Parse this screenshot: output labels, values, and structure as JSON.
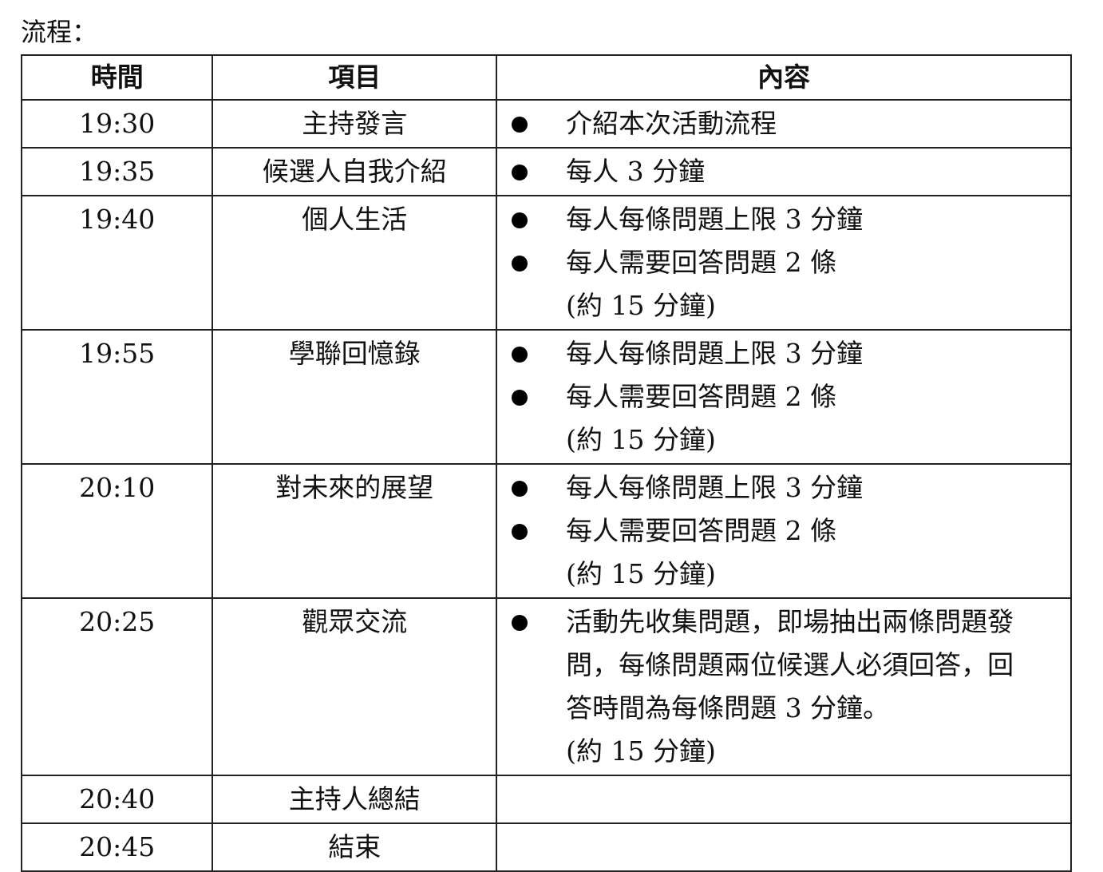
{
  "title": "流程：",
  "headers": [
    "時間",
    "項目",
    "內容"
  ],
  "rows": [
    {
      "time": "19:30",
      "item": "主持發言",
      "bullets": [
        "介紹本次活動流程"
      ],
      "note": ""
    },
    {
      "time": "19:35",
      "item": "候選人自我介紹",
      "bullets": [
        "每人 3 分鐘"
      ],
      "note": ""
    },
    {
      "time": "19:40",
      "item": "個人生活",
      "bullets": [
        "每人每條問題上限 3 分鐘",
        "每人需要回答問題 2 條"
      ],
      "note": "(約 15 分鐘)"
    },
    {
      "time": "19:55",
      "item": "學聯回憶錄",
      "bullets": [
        "每人每條問題上限 3 分鐘",
        "每人需要回答問題 2 條"
      ],
      "note": "(約 15 分鐘)"
    },
    {
      "time": "20:10",
      "item": "對未來的展望",
      "bullets": [
        "每人每條問題上限 3 分鐘",
        "每人需要回答問題 2 條"
      ],
      "note": "(約 15 分鐘)"
    },
    {
      "time": "20:25",
      "item": "觀眾交流",
      "bullets": [
        "活動先收集問題，即場抽出兩條問題發問，每條問題兩位候選人必須回答，回答時間為每條問題 3 分鐘。"
      ],
      "note": "(約 15 分鐘)"
    },
    {
      "time": "20:40",
      "item": "主持人總結",
      "bullets": [],
      "note": ""
    },
    {
      "time": "20:45",
      "item": "結束",
      "bullets": [],
      "note": ""
    }
  ]
}
